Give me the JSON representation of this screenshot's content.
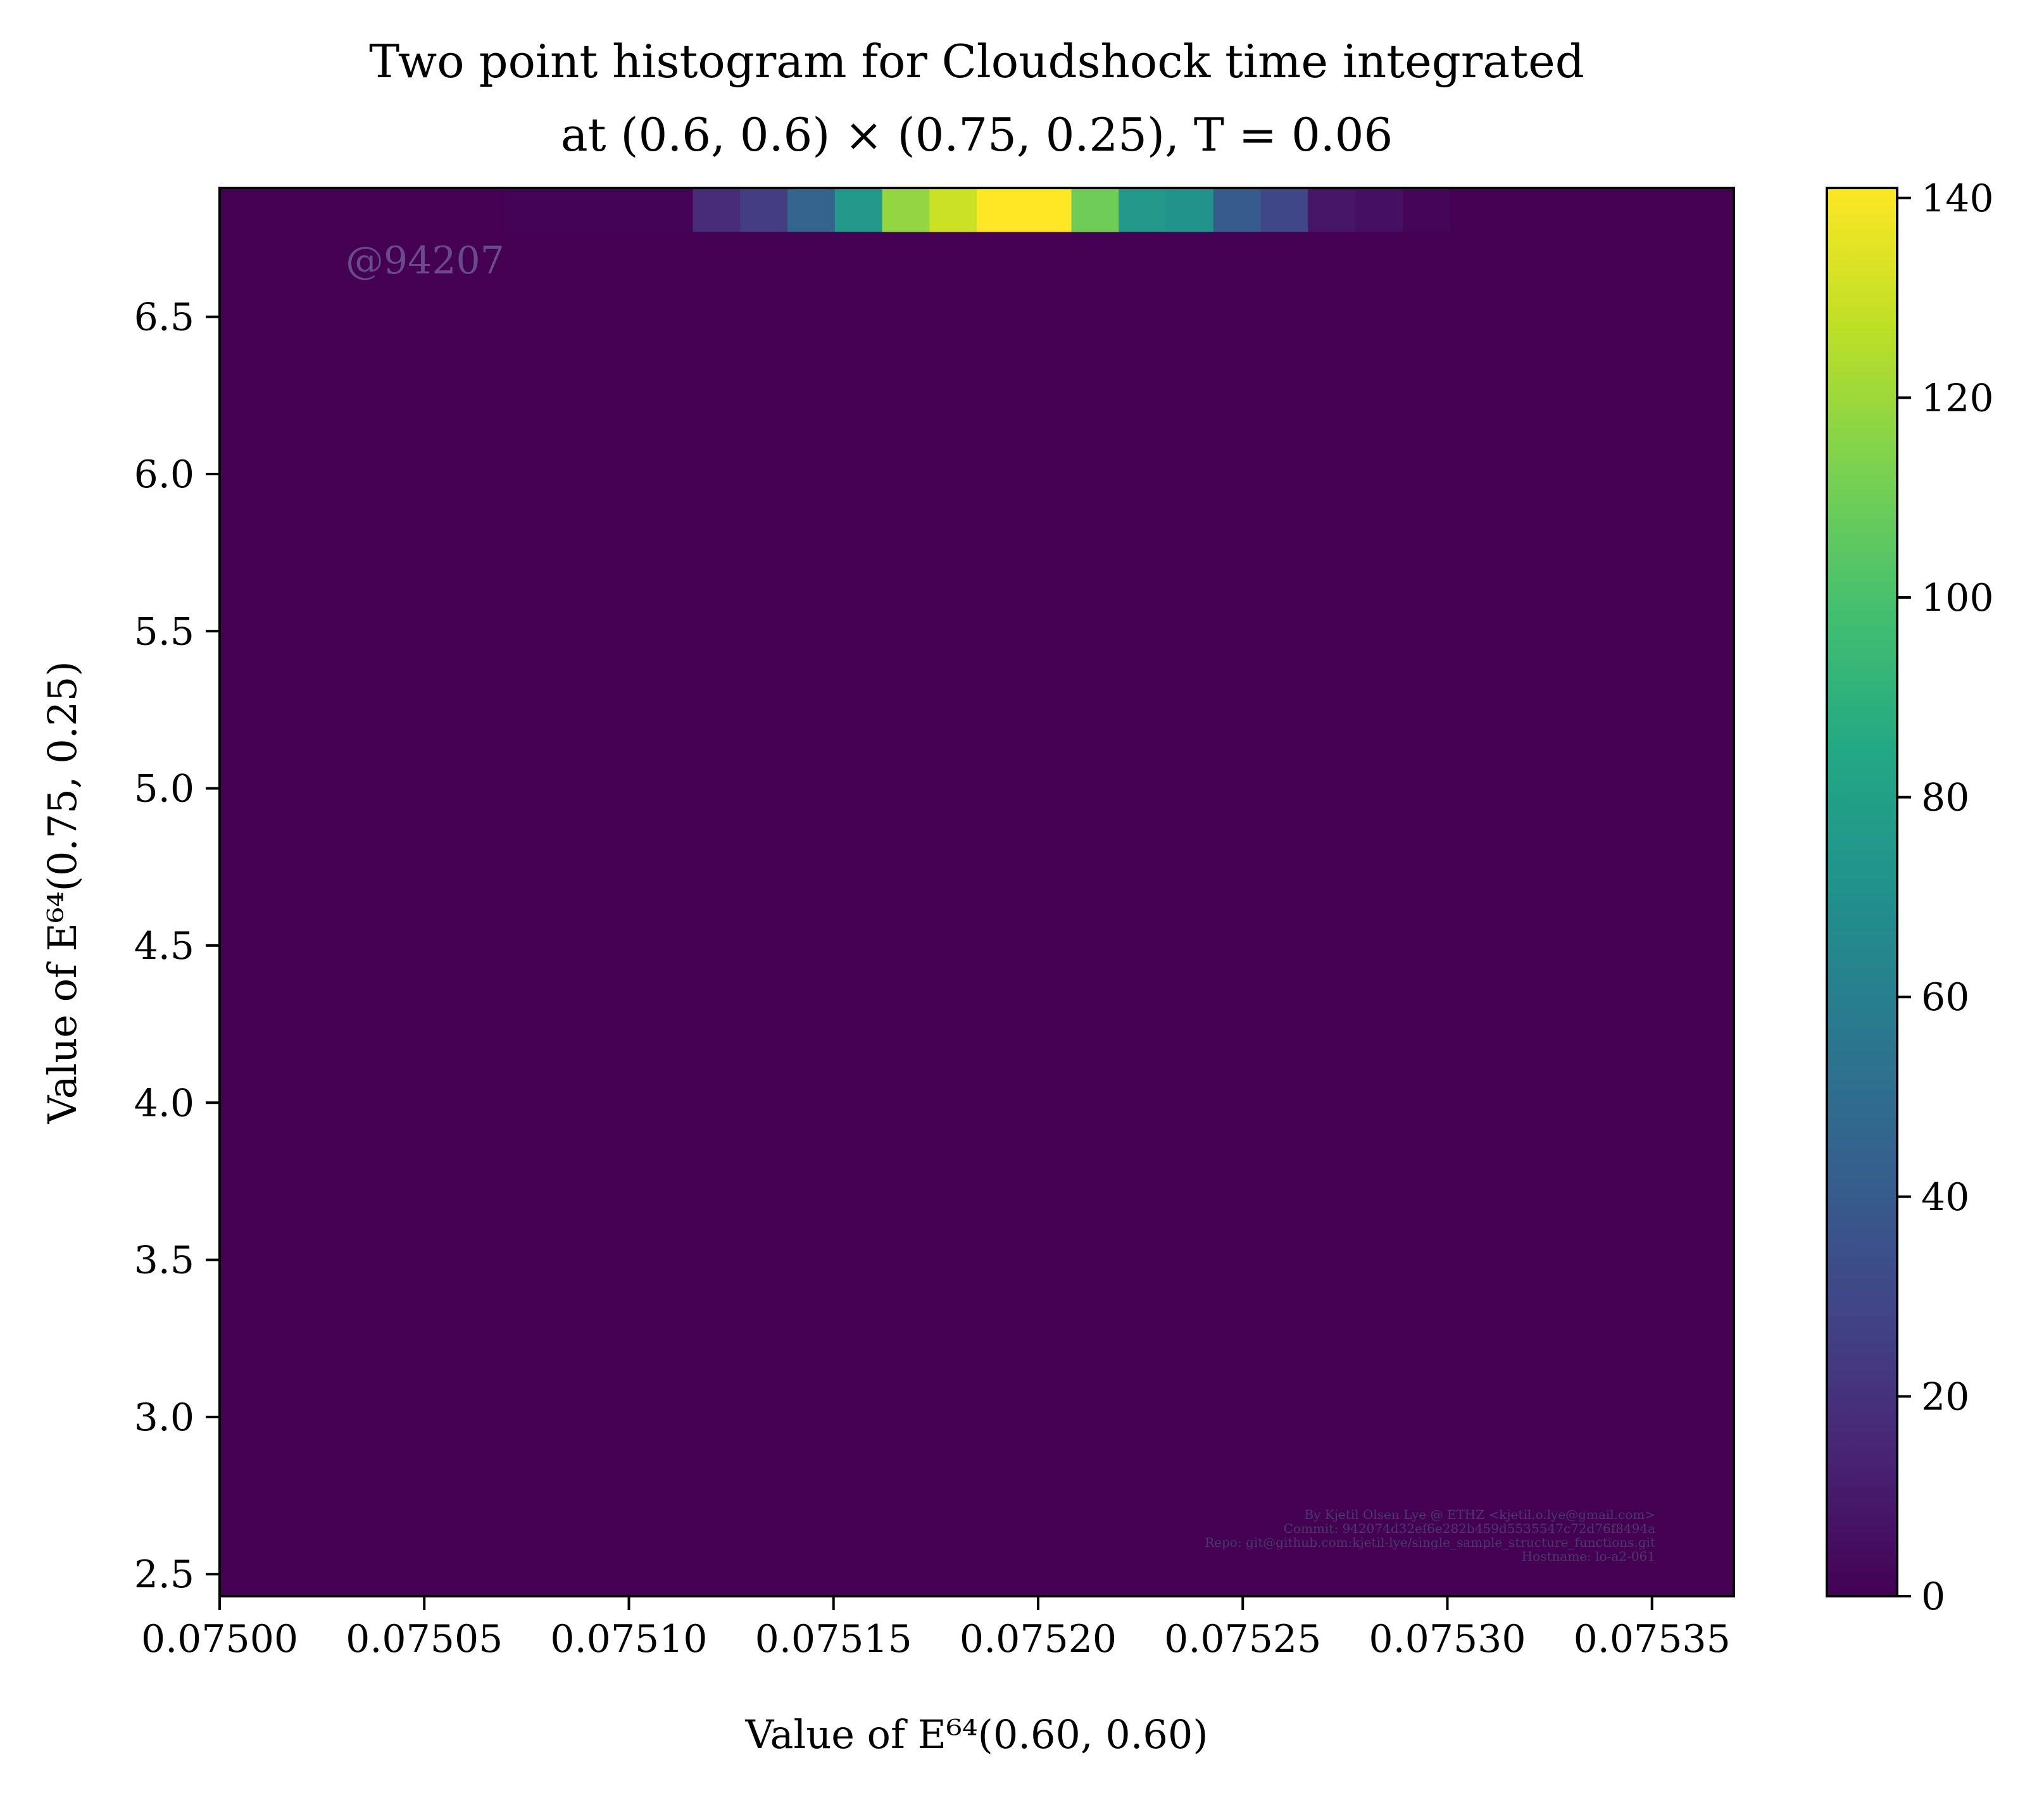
{
  "chart_data": {
    "type": "heatmap",
    "title_line1": "Two point histogram for Cloudshock time integrated",
    "title_line2": "at (0.6, 0.6) × (0.75, 0.25), T = 0.06",
    "xlabel": "Value of E⁶⁴(0.60, 0.60)",
    "ylabel": "Value of E⁶⁴(0.75, 0.25)",
    "xlim": [
      0.075,
      0.07537
    ],
    "ylim": [
      2.43,
      6.91
    ],
    "x_ticks": [
      "0.07500",
      "0.07505",
      "0.07510",
      "0.07515",
      "0.07520",
      "0.07525",
      "0.07530",
      "0.07535"
    ],
    "x_tick_values": [
      0.075,
      0.07505,
      0.0751,
      0.07515,
      0.0752,
      0.07525,
      0.0753,
      0.07535
    ],
    "y_ticks": [
      "2.5",
      "3.0",
      "3.5",
      "4.0",
      "4.5",
      "5.0",
      "5.5",
      "6.0",
      "6.5"
    ],
    "y_tick_values": [
      2.5,
      3.0,
      3.5,
      4.0,
      4.5,
      5.0,
      5.5,
      6.0,
      6.5
    ],
    "colorbar": {
      "min": 0,
      "max": 141,
      "ticks": [
        "0",
        "20",
        "40",
        "60",
        "80",
        "100",
        "120",
        "140"
      ],
      "tick_values": [
        0,
        20,
        40,
        60,
        80,
        100,
        120,
        140
      ],
      "colormap": "viridis"
    },
    "bins": {
      "x_start": 0.075,
      "x_end": 0.07537,
      "nx": 32,
      "y_start": 2.43,
      "y_end": 6.91,
      "ny": 32
    },
    "top_row_counts": [
      0,
      0,
      0,
      0,
      0,
      0,
      1,
      1,
      1,
      1,
      17,
      25,
      45,
      75,
      118,
      130,
      141,
      141,
      110,
      75,
      72,
      40,
      30,
      8,
      6,
      2,
      0,
      0,
      0,
      0,
      0,
      0
    ],
    "watermark": "@94207",
    "credits": [
      "By Kjetil Olsen Lye @ ETHZ <kjetil.o.lye@gmail.com>",
      "Commit: 942074d32ef6e282b459d5535547c72d76f8494a",
      "Repo: git@github.com:kjetil-lye/single_sample_structure_functions.git",
      "Hostname: lo-a2-061"
    ]
  }
}
